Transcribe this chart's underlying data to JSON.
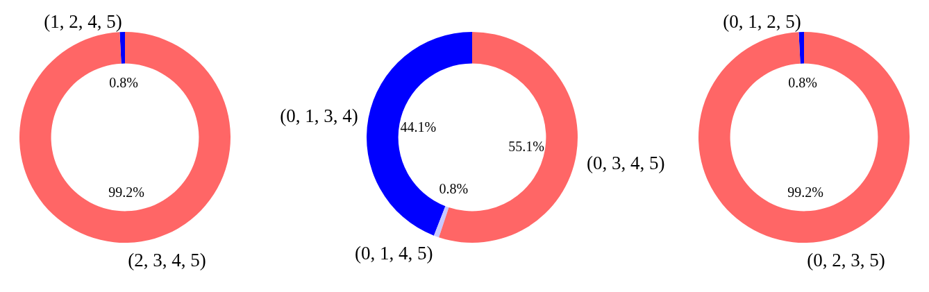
{
  "chart_data": [
    {
      "type": "donut",
      "categories": [
        "(1, 2, 4, 5)",
        "(2, 3, 4, 5)"
      ],
      "values": [
        0.8,
        99.2
      ],
      "colors": [
        "#0000ff",
        "#ff6666"
      ],
      "value_labels": [
        "0.8%",
        "99.2%"
      ]
    },
    {
      "type": "donut",
      "categories": [
        "(0, 1, 3, 4)",
        "(0, 1, 4, 5)",
        "(0, 3, 4, 5)"
      ],
      "values": [
        44.1,
        0.8,
        55.1
      ],
      "colors": [
        "#0000ff",
        "#c8c8ff",
        "#ff6666"
      ],
      "value_labels": [
        "44.1%",
        "0.8%",
        "55.1%"
      ]
    },
    {
      "type": "donut",
      "categories": [
        "(0, 1, 2, 5)",
        "(0, 2, 3, 5)"
      ],
      "values": [
        0.8,
        99.2
      ],
      "colors": [
        "#0000ff",
        "#ff6666"
      ],
      "value_labels": [
        "0.8%",
        "99.2%"
      ]
    }
  ]
}
